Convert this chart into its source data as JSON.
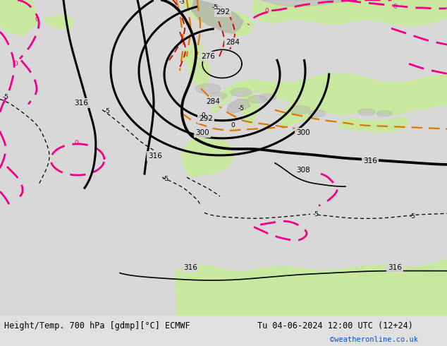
{
  "title_left": "Height/Temp. 700 hPa [gdmp][°C] ECMWF",
  "title_right": "Tu 04-06-2024 12:00 UTC (12+24)",
  "credit": "©weatheronline.co.uk",
  "credit_color": "#0055cc",
  "fig_width": 6.34,
  "fig_height": 4.9,
  "dpi": 100,
  "bg_color": "#e8e8e8",
  "sea_color": "#d8d8d8",
  "land_color": "#c8e8a0",
  "land_color2": "#b8d890",
  "gray_color": "#b0b0b0",
  "bottom_bg": "#e0e0e0"
}
